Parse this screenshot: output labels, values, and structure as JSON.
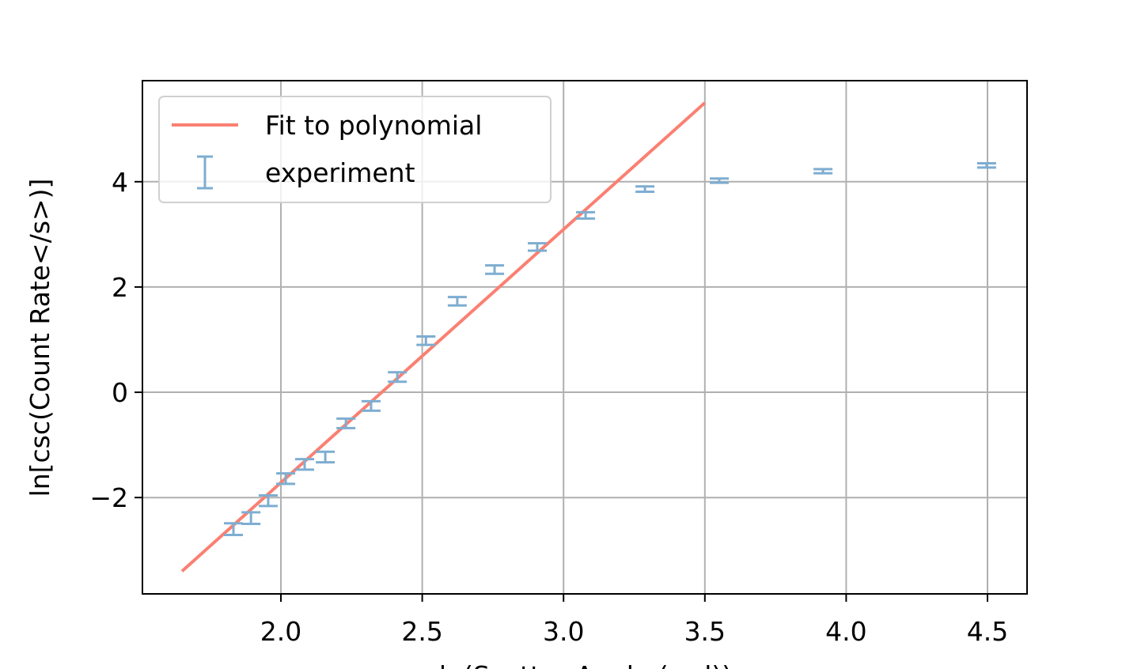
{
  "chart_data": {
    "type": "errorbar",
    "xlabel": "ln(Scatter Angle (rad))",
    "ylabel": "ln[csc(Count Rate</s>)]",
    "xlim": [
      1.51,
      4.64
    ],
    "ylim": [
      -3.83,
      5.92
    ],
    "xticks": [
      {
        "value": 2,
        "label": "2.0"
      },
      {
        "value": 2.5,
        "label": "2.5"
      },
      {
        "value": 3,
        "label": "3.0"
      },
      {
        "value": 3.5,
        "label": "3.5"
      },
      {
        "value": 4,
        "label": "4.0"
      },
      {
        "value": 4.5,
        "label": "4.5"
      }
    ],
    "yticks": [
      {
        "value": -2,
        "label": "−2"
      },
      0,
      2,
      4
    ],
    "grid": true,
    "legend": "upper left",
    "series": [
      {
        "name": "Fit to polynomial",
        "type": "line",
        "color": "#fa8072",
        "x": [
          1.65,
          3.5
        ],
        "values": [
          -3.4,
          5.5
        ]
      },
      {
        "name": "experiment",
        "type": "errorbar",
        "color": "#7eadd1",
        "x": [
          1.832,
          1.894,
          1.955,
          2.017,
          2.084,
          2.157,
          2.23,
          2.319,
          2.412,
          2.513,
          2.624,
          2.756,
          2.907,
          3.078,
          3.288,
          3.551,
          3.918,
          4.497
        ],
        "values": [
          -2.6,
          -2.39,
          -2.06,
          -1.64,
          -1.37,
          -1.23,
          -0.59,
          -0.26,
          0.29,
          0.98,
          1.73,
          2.33,
          2.76,
          3.36,
          3.86,
          4.02,
          4.2,
          4.31
        ],
        "errors": [
          0.11,
          0.11,
          0.1,
          0.1,
          0.1,
          0.1,
          0.09,
          0.09,
          0.09,
          0.08,
          0.08,
          0.08,
          0.07,
          0.06,
          0.05,
          0.04,
          0.04,
          0.04
        ]
      }
    ]
  }
}
